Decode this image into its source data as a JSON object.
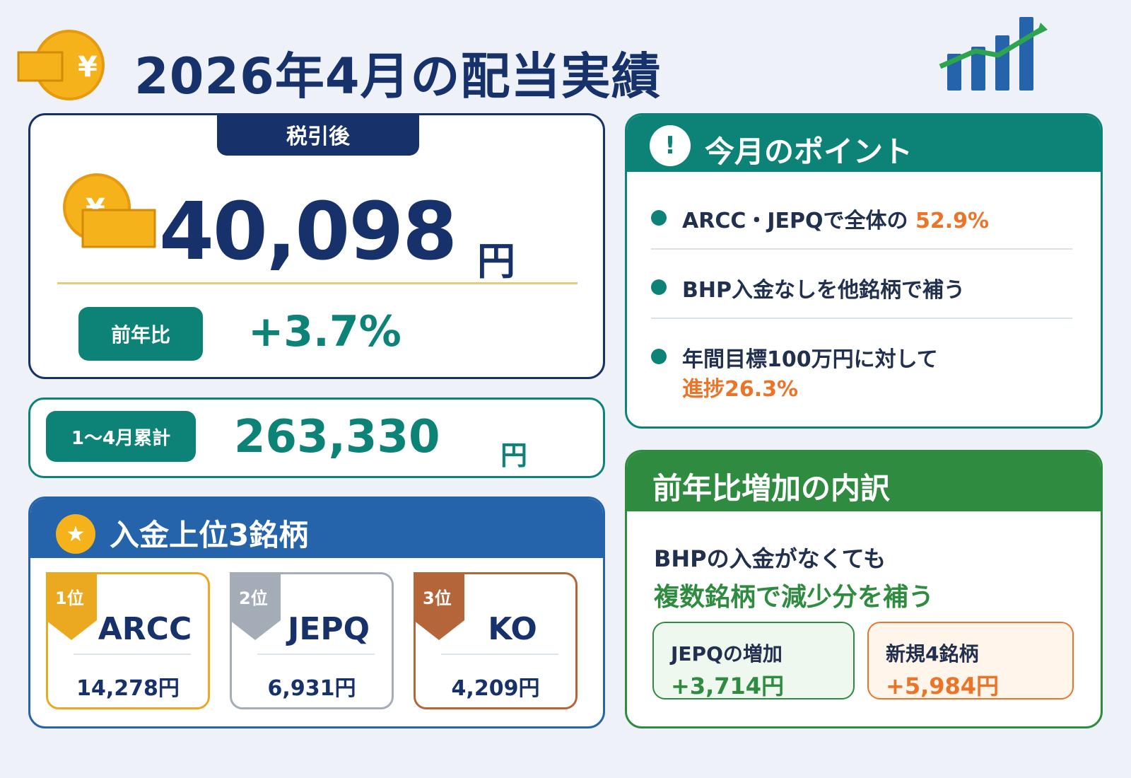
{
  "header": {
    "title": "2026年4月の配当実績"
  },
  "after_tax": {
    "tab_label": "税引後",
    "amount": "40,098",
    "unit": "円",
    "yoy_label": "前年比",
    "yoy_value": "+3.7%"
  },
  "cumulative": {
    "label": "1〜4月累計",
    "amount": "263,330",
    "unit": "円"
  },
  "top3": {
    "title": "入金上位3銘柄",
    "items": [
      {
        "rank": "1位",
        "ticker": "ARCC",
        "amount": "14,278円",
        "color": "#eba922"
      },
      {
        "rank": "2位",
        "ticker": "JEPQ",
        "amount": "6,931円",
        "color": "#a4acb8"
      },
      {
        "rank": "3位",
        "ticker": "KO",
        "amount": "4,209円",
        "color": "#b5653a"
      }
    ]
  },
  "points": {
    "title": "今月のポイント",
    "items": [
      {
        "text": "ARCC・JEPQで全体の",
        "highlight": "52.9%"
      },
      {
        "text": "BHP入金なしを他銘柄で補う"
      },
      {
        "text": "年間目標100万円に対して",
        "highlight": "進捗26.3%"
      }
    ]
  },
  "breakdown": {
    "title": "前年比増加の内訳",
    "line1": "BHPの入金がなくても",
    "line2": "複数銘柄で減少分を補う",
    "boxes": [
      {
        "label": "JEPQの増加",
        "value": "+3,714円",
        "color": "#2e8b3f",
        "bg": "#eef8ef"
      },
      {
        "label": "新規4銘柄",
        "value": "+5,984円",
        "color": "#ec7428",
        "bg": "#fff5eb"
      }
    ]
  },
  "colors": {
    "navy": "#17316a",
    "teal": "#0d8378",
    "blue": "#2563ab",
    "green": "#2e8b3f",
    "orange": "#ec7428",
    "gold": "#f6b21b"
  },
  "icons": [
    "coin-yen-icon",
    "bar-chart-growth-icon",
    "star-icon",
    "exclamation-icon"
  ]
}
